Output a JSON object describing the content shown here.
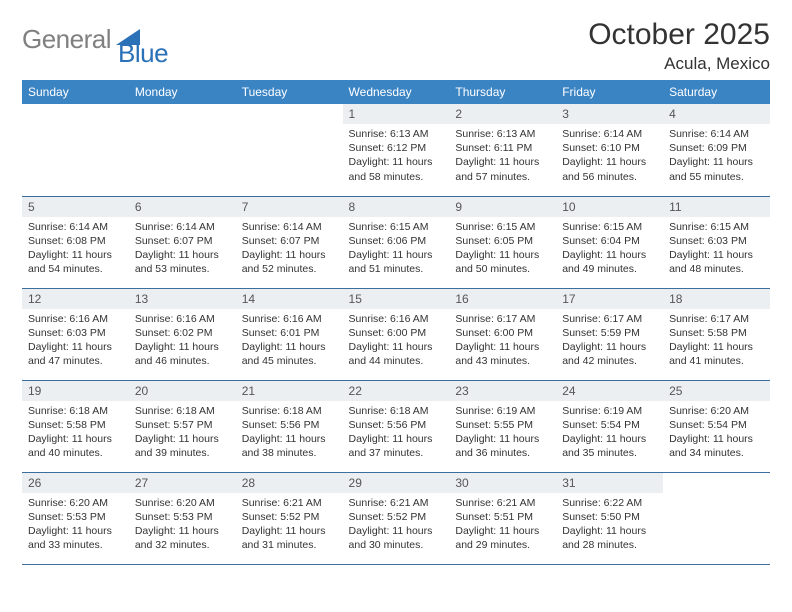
{
  "logo": {
    "gray": "General",
    "blue": "Blue"
  },
  "title": "October 2025",
  "location": "Acula, Mexico",
  "colors": {
    "header_bg": "#3b84c4",
    "header_text": "#ffffff",
    "daynum_bg": "#eceff1",
    "border": "#3b6fa0",
    "logo_gray": "#808080",
    "logo_blue": "#2b71b8"
  },
  "weekdays": [
    "Sunday",
    "Monday",
    "Tuesday",
    "Wednesday",
    "Thursday",
    "Friday",
    "Saturday"
  ],
  "weeks": [
    [
      null,
      null,
      null,
      {
        "n": "1",
        "sr": "6:13 AM",
        "ss": "6:12 PM",
        "dl": "11 hours and 58 minutes."
      },
      {
        "n": "2",
        "sr": "6:13 AM",
        "ss": "6:11 PM",
        "dl": "11 hours and 57 minutes."
      },
      {
        "n": "3",
        "sr": "6:14 AM",
        "ss": "6:10 PM",
        "dl": "11 hours and 56 minutes."
      },
      {
        "n": "4",
        "sr": "6:14 AM",
        "ss": "6:09 PM",
        "dl": "11 hours and 55 minutes."
      }
    ],
    [
      {
        "n": "5",
        "sr": "6:14 AM",
        "ss": "6:08 PM",
        "dl": "11 hours and 54 minutes."
      },
      {
        "n": "6",
        "sr": "6:14 AM",
        "ss": "6:07 PM",
        "dl": "11 hours and 53 minutes."
      },
      {
        "n": "7",
        "sr": "6:14 AM",
        "ss": "6:07 PM",
        "dl": "11 hours and 52 minutes."
      },
      {
        "n": "8",
        "sr": "6:15 AM",
        "ss": "6:06 PM",
        "dl": "11 hours and 51 minutes."
      },
      {
        "n": "9",
        "sr": "6:15 AM",
        "ss": "6:05 PM",
        "dl": "11 hours and 50 minutes."
      },
      {
        "n": "10",
        "sr": "6:15 AM",
        "ss": "6:04 PM",
        "dl": "11 hours and 49 minutes."
      },
      {
        "n": "11",
        "sr": "6:15 AM",
        "ss": "6:03 PM",
        "dl": "11 hours and 48 minutes."
      }
    ],
    [
      {
        "n": "12",
        "sr": "6:16 AM",
        "ss": "6:03 PM",
        "dl": "11 hours and 47 minutes."
      },
      {
        "n": "13",
        "sr": "6:16 AM",
        "ss": "6:02 PM",
        "dl": "11 hours and 46 minutes."
      },
      {
        "n": "14",
        "sr": "6:16 AM",
        "ss": "6:01 PM",
        "dl": "11 hours and 45 minutes."
      },
      {
        "n": "15",
        "sr": "6:16 AM",
        "ss": "6:00 PM",
        "dl": "11 hours and 44 minutes."
      },
      {
        "n": "16",
        "sr": "6:17 AM",
        "ss": "6:00 PM",
        "dl": "11 hours and 43 minutes."
      },
      {
        "n": "17",
        "sr": "6:17 AM",
        "ss": "5:59 PM",
        "dl": "11 hours and 42 minutes."
      },
      {
        "n": "18",
        "sr": "6:17 AM",
        "ss": "5:58 PM",
        "dl": "11 hours and 41 minutes."
      }
    ],
    [
      {
        "n": "19",
        "sr": "6:18 AM",
        "ss": "5:58 PM",
        "dl": "11 hours and 40 minutes."
      },
      {
        "n": "20",
        "sr": "6:18 AM",
        "ss": "5:57 PM",
        "dl": "11 hours and 39 minutes."
      },
      {
        "n": "21",
        "sr": "6:18 AM",
        "ss": "5:56 PM",
        "dl": "11 hours and 38 minutes."
      },
      {
        "n": "22",
        "sr": "6:18 AM",
        "ss": "5:56 PM",
        "dl": "11 hours and 37 minutes."
      },
      {
        "n": "23",
        "sr": "6:19 AM",
        "ss": "5:55 PM",
        "dl": "11 hours and 36 minutes."
      },
      {
        "n": "24",
        "sr": "6:19 AM",
        "ss": "5:54 PM",
        "dl": "11 hours and 35 minutes."
      },
      {
        "n": "25",
        "sr": "6:20 AM",
        "ss": "5:54 PM",
        "dl": "11 hours and 34 minutes."
      }
    ],
    [
      {
        "n": "26",
        "sr": "6:20 AM",
        "ss": "5:53 PM",
        "dl": "11 hours and 33 minutes."
      },
      {
        "n": "27",
        "sr": "6:20 AM",
        "ss": "5:53 PM",
        "dl": "11 hours and 32 minutes."
      },
      {
        "n": "28",
        "sr": "6:21 AM",
        "ss": "5:52 PM",
        "dl": "11 hours and 31 minutes."
      },
      {
        "n": "29",
        "sr": "6:21 AM",
        "ss": "5:52 PM",
        "dl": "11 hours and 30 minutes."
      },
      {
        "n": "30",
        "sr": "6:21 AM",
        "ss": "5:51 PM",
        "dl": "11 hours and 29 minutes."
      },
      {
        "n": "31",
        "sr": "6:22 AM",
        "ss": "5:50 PM",
        "dl": "11 hours and 28 minutes."
      },
      null
    ]
  ],
  "labels": {
    "sunrise": "Sunrise:",
    "sunset": "Sunset:",
    "daylight": "Daylight:"
  }
}
